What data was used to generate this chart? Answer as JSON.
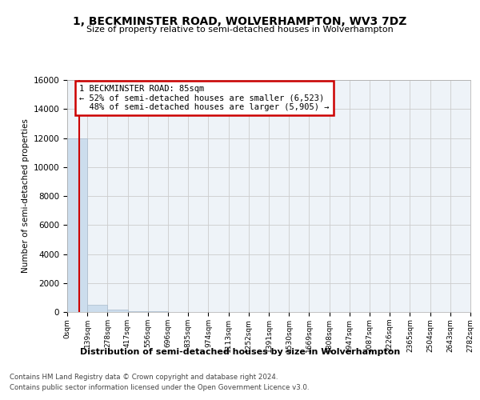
{
  "title": "1, BECKMINSTER ROAD, WOLVERHAMPTON, WV3 7DZ",
  "subtitle": "Size of property relative to semi-detached houses in Wolverhampton",
  "xlabel_dist": "Distribution of semi-detached houses by size in Wolverhampton",
  "ylabel": "Number of semi-detached properties",
  "property_size": 85,
  "smaller_pct": 52,
  "smaller_n": "6,523",
  "larger_pct": 48,
  "larger_n": "5,905",
  "footer1": "Contains HM Land Registry data © Crown copyright and database right 2024.",
  "footer2": "Contains public sector information licensed under the Open Government Licence v3.0.",
  "bin_edges": [
    0,
    139,
    278,
    417,
    556,
    696,
    835,
    974,
    1113,
    1252,
    1391,
    1530,
    1669,
    1808,
    1947,
    2087,
    2226,
    2365,
    2504,
    2643,
    2782
  ],
  "bin_heights": [
    12000,
    500,
    180,
    80,
    45,
    25,
    15,
    10,
    8,
    6,
    5,
    4,
    3,
    3,
    2,
    2,
    2,
    1,
    1,
    1
  ],
  "bar_color": "#ccdded",
  "bar_edge_color": "#aabbcc",
  "vline_color": "#cc0000",
  "annotation_box_color": "#cc0000",
  "grid_color": "#cccccc",
  "bg_color": "#eef3f8",
  "ylim": [
    0,
    16000
  ],
  "xlim": [
    0,
    2782
  ],
  "yticks": [
    0,
    2000,
    4000,
    6000,
    8000,
    10000,
    12000,
    14000,
    16000
  ],
  "tick_labels": [
    "0sqm",
    "139sqm",
    "278sqm",
    "417sqm",
    "556sqm",
    "696sqm",
    "835sqm",
    "974sqm",
    "1113sqm",
    "1252sqm",
    "1391sqm",
    "1530sqm",
    "1669sqm",
    "1808sqm",
    "1947sqm",
    "2087sqm",
    "2226sqm",
    "2365sqm",
    "2504sqm",
    "2643sqm",
    "2782sqm"
  ]
}
